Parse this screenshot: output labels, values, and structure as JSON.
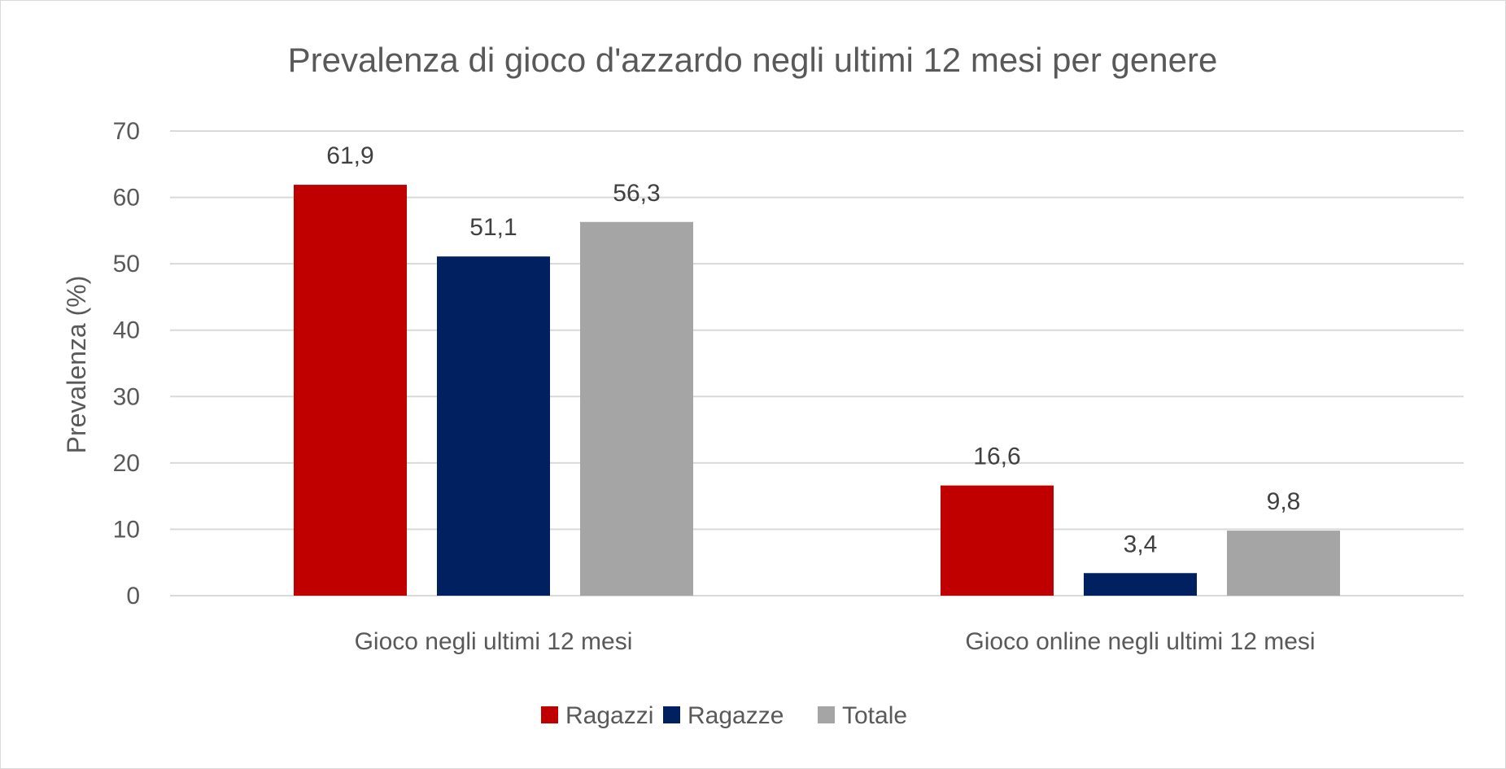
{
  "chart_data": {
    "type": "bar",
    "title": "Prevalenza di gioco d'azzardo negli ultimi 12 mesi per genere",
    "xlabel": "",
    "ylabel": "Prevalenza (%)",
    "ylim": [
      0,
      70
    ],
    "yticks": [
      0,
      10,
      20,
      30,
      40,
      50,
      60,
      70
    ],
    "grid": true,
    "legend_position": "bottom",
    "categories": [
      "Gioco negli ultimi 12 mesi",
      "Gioco online negli ultimi 12 mesi"
    ],
    "series": [
      {
        "name": "Ragazzi",
        "color": "#c00000",
        "values": [
          61.9,
          16.6
        ],
        "labels": [
          "61,9",
          "16,6"
        ]
      },
      {
        "name": "Ragazze",
        "color": "#002060",
        "values": [
          51.1,
          3.4
        ],
        "labels": [
          "51,1",
          "3,4"
        ]
      },
      {
        "name": "Totale",
        "color": "#a5a5a5",
        "values": [
          56.3,
          9.8
        ],
        "labels": [
          "56,3",
          "9,8"
        ]
      }
    ]
  }
}
